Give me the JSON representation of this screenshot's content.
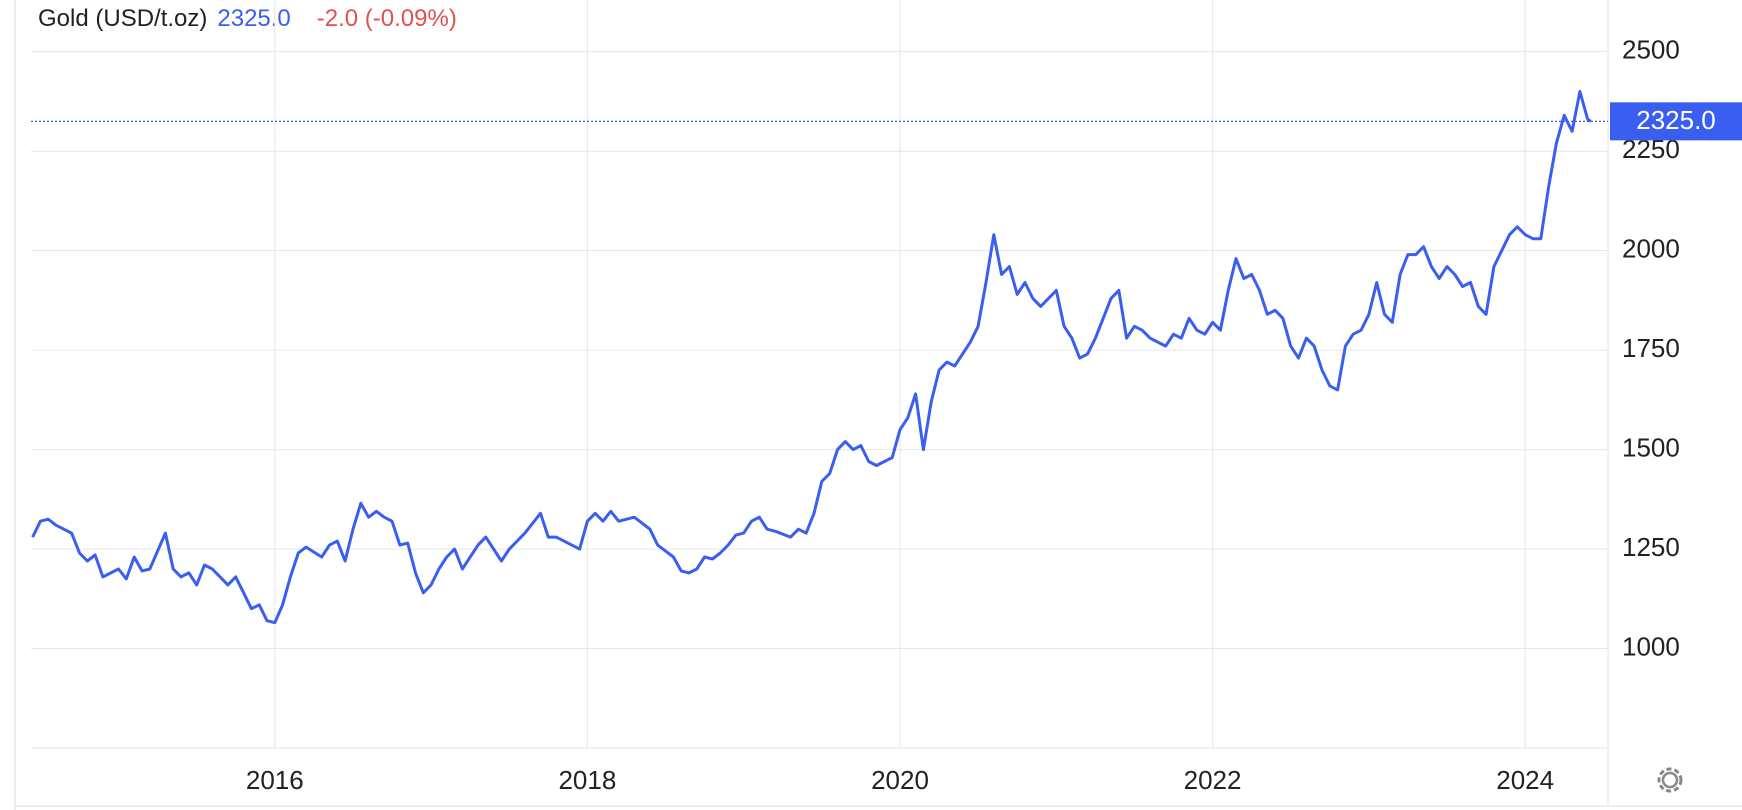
{
  "chart_data": {
    "type": "line",
    "title": "Gold (USD/t.oz)",
    "last_price": {
      "value": 2325,
      "label": "2325.0"
    },
    "change": "-2.0 (-0.09%)",
    "xlim": [
      2014.44,
      2024.53
    ],
    "xticks": [
      2016,
      2018,
      2020,
      2022,
      2024
    ],
    "ylim": [
      750,
      2630
    ],
    "yticks": [
      1000,
      1250,
      1500,
      1750,
      2000,
      2250,
      2500
    ],
    "grid": true,
    "series": [
      {
        "name": "Gold",
        "color": "#3a5ff0",
        "x": [
          2014.45,
          2014.5,
          2014.55,
          2014.6,
          2014.7,
          2014.75,
          2014.8,
          2014.85,
          2014.9,
          2015.0,
          2015.05,
          2015.1,
          2015.15,
          2015.2,
          2015.3,
          2015.35,
          2015.4,
          2015.45,
          2015.5,
          2015.55,
          2015.6,
          2015.7,
          2015.75,
          2015.8,
          2015.85,
          2015.9,
          2015.95,
          2016.0,
          2016.05,
          2016.1,
          2016.15,
          2016.2,
          2016.3,
          2016.35,
          2016.4,
          2016.45,
          2016.5,
          2016.55,
          2016.6,
          2016.65,
          2016.7,
          2016.75,
          2016.8,
          2016.85,
          2016.9,
          2016.95,
          2017.0,
          2017.05,
          2017.1,
          2017.15,
          2017.2,
          2017.25,
          2017.3,
          2017.35,
          2017.45,
          2017.5,
          2017.55,
          2017.6,
          2017.7,
          2017.75,
          2017.8,
          2017.9,
          2017.95,
          2018.0,
          2018.05,
          2018.1,
          2018.15,
          2018.2,
          2018.3,
          2018.4,
          2018.45,
          2018.55,
          2018.6,
          2018.65,
          2018.7,
          2018.75,
          2018.8,
          2018.85,
          2018.9,
          2018.95,
          2019.0,
          2019.05,
          2019.1,
          2019.15,
          2019.2,
          2019.3,
          2019.35,
          2019.4,
          2019.45,
          2019.5,
          2019.55,
          2019.6,
          2019.65,
          2019.7,
          2019.75,
          2019.8,
          2019.85,
          2019.95,
          2020.0,
          2020.05,
          2020.1,
          2020.15,
          2020.2,
          2020.25,
          2020.3,
          2020.35,
          2020.4,
          2020.45,
          2020.5,
          2020.55,
          2020.6,
          2020.65,
          2020.7,
          2020.75,
          2020.8,
          2020.85,
          2020.9,
          2020.95,
          2021.0,
          2021.05,
          2021.1,
          2021.15,
          2021.2,
          2021.25,
          2021.35,
          2021.4,
          2021.45,
          2021.5,
          2021.55,
          2021.6,
          2021.7,
          2021.75,
          2021.8,
          2021.85,
          2021.9,
          2021.95,
          2022.0,
          2022.05,
          2022.1,
          2022.15,
          2022.2,
          2022.25,
          2022.3,
          2022.35,
          2022.4,
          2022.45,
          2022.5,
          2022.55,
          2022.6,
          2022.65,
          2022.7,
          2022.75,
          2022.8,
          2022.85,
          2022.9,
          2022.95,
          2023.0,
          2023.05,
          2023.1,
          2023.15,
          2023.2,
          2023.25,
          2023.3,
          2023.35,
          2023.4,
          2023.45,
          2023.5,
          2023.55,
          2023.6,
          2023.65,
          2023.7,
          2023.75,
          2023.8,
          2023.85,
          2023.9,
          2023.95,
          2024.0,
          2024.05,
          2024.1,
          2024.15,
          2024.2,
          2024.25,
          2024.3,
          2024.35,
          2024.4,
          2024.42
        ],
        "values": [
          1280,
          1320,
          1325,
          1310,
          1290,
          1240,
          1220,
          1235,
          1180,
          1200,
          1175,
          1230,
          1195,
          1200,
          1290,
          1200,
          1180,
          1190,
          1160,
          1210,
          1200,
          1160,
          1180,
          1140,
          1100,
          1110,
          1070,
          1065,
          1110,
          1180,
          1240,
          1255,
          1230,
          1260,
          1270,
          1220,
          1300,
          1365,
          1330,
          1345,
          1330,
          1320,
          1260,
          1265,
          1190,
          1140,
          1160,
          1200,
          1230,
          1250,
          1200,
          1230,
          1260,
          1280,
          1220,
          1250,
          1270,
          1290,
          1340,
          1280,
          1280,
          1260,
          1250,
          1320,
          1340,
          1320,
          1345,
          1320,
          1330,
          1300,
          1260,
          1230,
          1195,
          1190,
          1200,
          1230,
          1225,
          1240,
          1260,
          1285,
          1290,
          1320,
          1330,
          1300,
          1295,
          1280,
          1300,
          1290,
          1340,
          1420,
          1440,
          1500,
          1520,
          1500,
          1510,
          1470,
          1460,
          1480,
          1550,
          1580,
          1640,
          1500,
          1620,
          1700,
          1720,
          1710,
          1740,
          1770,
          1810,
          1920,
          2040,
          1940,
          1960,
          1890,
          1920,
          1880,
          1860,
          1880,
          1900,
          1810,
          1780,
          1730,
          1740,
          1780,
          1880,
          1900,
          1780,
          1810,
          1800,
          1780,
          1760,
          1790,
          1780,
          1830,
          1800,
          1790,
          1820,
          1800,
          1900,
          1980,
          1930,
          1940,
          1900,
          1840,
          1850,
          1830,
          1760,
          1730,
          1780,
          1760,
          1700,
          1660,
          1650,
          1760,
          1790,
          1800,
          1840,
          1920,
          1840,
          1820,
          1940,
          1990,
          1990,
          2010,
          1960,
          1930,
          1960,
          1940,
          1910,
          1920,
          1860,
          1840,
          1960,
          2000,
          2040,
          2060,
          2040,
          2030,
          2030,
          2160,
          2270,
          2340,
          2300,
          2400,
          2330,
          2325
        ]
      }
    ]
  }
}
